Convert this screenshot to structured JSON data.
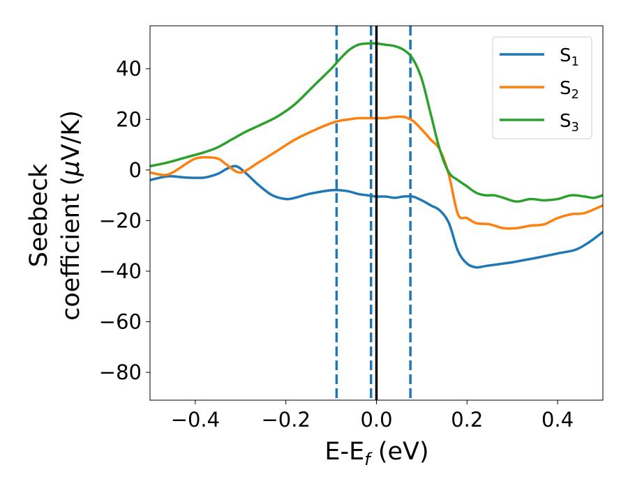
{
  "chart_data": {
    "type": "line",
    "xlabel": "E-E",
    "xlabel_sub": "f",
    "xlabel_unit": " (eV)",
    "ylabel_line1": "Seebeck",
    "ylabel_line2_prefix": "coefficient  (",
    "ylabel_mu": "μ",
    "ylabel_line2_suffix": "V/K)",
    "xlim": [
      -0.5,
      0.5
    ],
    "ylim": [
      -91,
      57
    ],
    "x_ticks": [
      -0.4,
      -0.2,
      0.0,
      0.2,
      0.4
    ],
    "x_tick_labels": [
      "−0.4",
      "−0.2",
      "0.0",
      "0.2",
      "0.4"
    ],
    "y_ticks": [
      -80,
      -60,
      -40,
      -20,
      0,
      20,
      40
    ],
    "y_tick_labels": [
      "−80",
      "−60",
      "−40",
      "−20",
      "0",
      "20",
      "40"
    ],
    "grid": false,
    "legend_position": "top-right",
    "vertical_lines": [
      {
        "x": -0.088,
        "style": "dashed",
        "color": "#1f77b4"
      },
      {
        "x": -0.012,
        "style": "dashed",
        "color": "#1f77b4"
      },
      {
        "x": 0.075,
        "style": "dashed",
        "color": "#1f77b4"
      },
      {
        "x": 0.0,
        "style": "solid",
        "color": "#000000"
      }
    ],
    "series": [
      {
        "name": "S",
        "name_sub": "1",
        "color": "#1f77b4",
        "x": [
          -0.5,
          -0.46,
          -0.42,
          -0.38,
          -0.35,
          -0.33,
          -0.31,
          -0.29,
          -0.26,
          -0.23,
          -0.2,
          -0.18,
          -0.15,
          -0.12,
          -0.1,
          -0.08,
          -0.06,
          -0.04,
          -0.02,
          0.0,
          0.02,
          0.04,
          0.06,
          0.08,
          0.1,
          0.12,
          0.14,
          0.16,
          0.18,
          0.2,
          0.22,
          0.24,
          0.26,
          0.28,
          0.3,
          0.33,
          0.36,
          0.4,
          0.44,
          0.47,
          0.5
        ],
        "y": [
          -4,
          -2.5,
          -3,
          -3,
          -1.5,
          0.5,
          1.5,
          -1,
          -6,
          -10,
          -11.5,
          -11,
          -9.5,
          -8.5,
          -8,
          -8,
          -8.5,
          -9.5,
          -10,
          -10.5,
          -10.5,
          -11,
          -10.5,
          -10.5,
          -12,
          -14,
          -16,
          -21,
          -32,
          -37,
          -38.5,
          -38,
          -37.5,
          -37,
          -36.5,
          -35.5,
          -34.5,
          -33,
          -31.5,
          -28.5,
          -24.5
        ]
      },
      {
        "name": "S",
        "name_sub": "2",
        "color": "#ff7f0e",
        "x": [
          -0.5,
          -0.47,
          -0.45,
          -0.42,
          -0.4,
          -0.38,
          -0.35,
          -0.33,
          -0.3,
          -0.26,
          -0.22,
          -0.18,
          -0.14,
          -0.1,
          -0.08,
          -0.06,
          -0.04,
          -0.02,
          0.0,
          0.02,
          0.04,
          0.06,
          0.08,
          0.1,
          0.12,
          0.14,
          0.16,
          0.18,
          0.2,
          0.22,
          0.25,
          0.28,
          0.31,
          0.34,
          0.37,
          0.4,
          0.43,
          0.46,
          0.5
        ],
        "y": [
          -1,
          -2,
          -1,
          2.5,
          4.5,
          5,
          4.5,
          2,
          -1,
          3,
          7.5,
          12,
          15.5,
          18.5,
          19.5,
          20,
          20.5,
          20.5,
          20.5,
          20.5,
          21,
          21,
          19.5,
          16,
          12,
          8,
          -2,
          -17.5,
          -19,
          -21,
          -21.5,
          -23,
          -23,
          -22,
          -21.5,
          -19,
          -17.5,
          -17,
          -14
        ]
      },
      {
        "name": "S",
        "name_sub": "3",
        "color": "#2ca02c",
        "x": [
          -0.5,
          -0.46,
          -0.42,
          -0.38,
          -0.35,
          -0.32,
          -0.29,
          -0.26,
          -0.22,
          -0.18,
          -0.14,
          -0.1,
          -0.08,
          -0.06,
          -0.04,
          -0.02,
          0.0,
          0.02,
          0.04,
          0.06,
          0.08,
          0.1,
          0.12,
          0.14,
          0.16,
          0.18,
          0.2,
          0.22,
          0.24,
          0.26,
          0.28,
          0.31,
          0.34,
          0.37,
          0.4,
          0.43,
          0.46,
          0.48,
          0.5
        ],
        "y": [
          1.5,
          3,
          5,
          7,
          9,
          12,
          15,
          17.5,
          21,
          26,
          33,
          40,
          44,
          47.5,
          49.5,
          50,
          50,
          49.5,
          49,
          47.5,
          44,
          36,
          22,
          8,
          -1,
          -4,
          -6.5,
          -9,
          -10,
          -10,
          -11,
          -12.5,
          -11.5,
          -12,
          -11.5,
          -10,
          -10.5,
          -11,
          -10
        ]
      }
    ]
  }
}
